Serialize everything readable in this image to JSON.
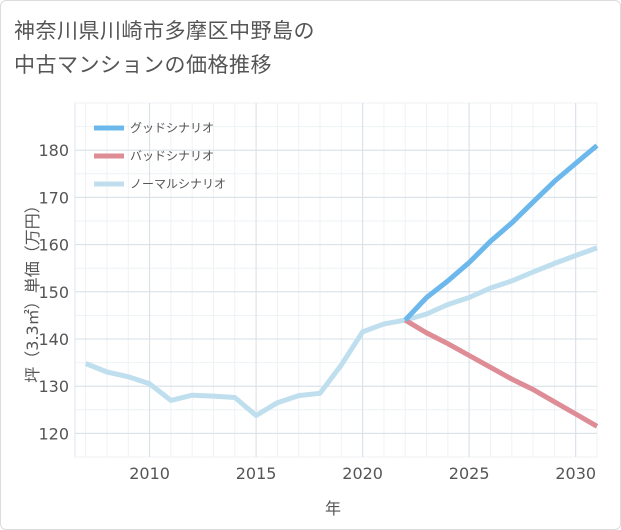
{
  "title_lines": [
    "神奈川県川崎市多摩区中野島の",
    "中古マンションの価格推移"
  ],
  "chart_data": {
    "type": "line",
    "title": "神奈川県川崎市多摩区中野島の中古マンションの価格推移",
    "xlabel": "年",
    "ylabel": "坪（3.3㎡）単価（万円）",
    "xlim": [
      2006.5,
      2031
    ],
    "ylim": [
      115,
      190
    ],
    "xticks": [
      2010,
      2015,
      2020,
      2025,
      2030
    ],
    "yticks": [
      120,
      130,
      140,
      150,
      160,
      170,
      180
    ],
    "legend_position": "top-left",
    "series": [
      {
        "name": "グッドシナリオ",
        "color": "#6cb8ec",
        "x": [
          2022,
          2023,
          2024,
          2025,
          2026,
          2027,
          2028,
          2029,
          2030,
          2031
        ],
        "y": [
          144,
          148.8,
          152.3,
          156.2,
          160.7,
          164.6,
          169.0,
          173.4,
          177.2,
          181.0
        ]
      },
      {
        "name": "バッドシナリオ",
        "color": "#de8c95",
        "x": [
          2022,
          2023,
          2024,
          2025,
          2026,
          2027,
          2028,
          2029,
          2030,
          2031
        ],
        "y": [
          144,
          141.3,
          139.0,
          136.5,
          134.0,
          131.5,
          129.3,
          126.7,
          124.1,
          121.5
        ]
      },
      {
        "name": "ノーマルシナリオ",
        "color": "#bfdfee",
        "x": [
          2007,
          2008,
          2009,
          2010,
          2011,
          2012,
          2013,
          2014,
          2015,
          2016,
          2017,
          2018,
          2019,
          2020,
          2021,
          2022,
          2023,
          2024,
          2025,
          2026,
          2027,
          2028,
          2029,
          2030,
          2031
        ],
        "y": [
          134.8,
          133.0,
          132.0,
          130.5,
          127.0,
          128.1,
          127.9,
          127.6,
          123.8,
          126.5,
          128.0,
          128.5,
          134.5,
          141.5,
          143.2,
          144.0,
          145.3,
          147.3,
          148.8,
          150.8,
          152.3,
          154.2,
          156.0,
          157.7,
          159.3
        ]
      }
    ]
  }
}
